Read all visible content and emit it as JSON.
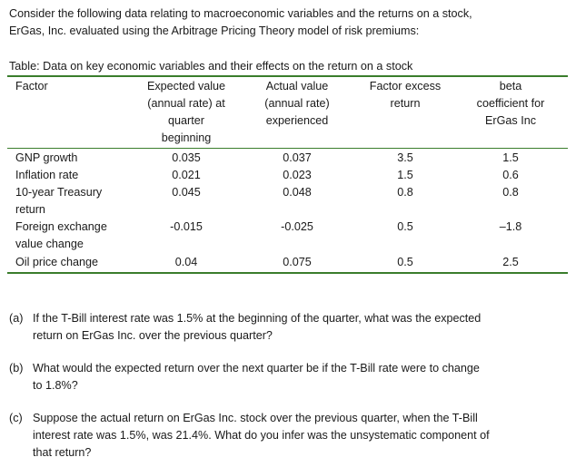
{
  "intro": [
    "Consider the following data relating to macroeconomic variables and the returns on a stock,",
    "ErGas, Inc. evaluated using the Arbitrage Pricing Theory model of risk premiums:"
  ],
  "table": {
    "caption": "Table: Data on key economic variables and their effects on the return on a stock",
    "headers": [
      [
        "Factor"
      ],
      [
        "Expected value",
        "(annual rate) at",
        "quarter",
        "beginning"
      ],
      [
        "Actual value",
        "(annual rate)",
        "experienced"
      ],
      [
        "Factor excess",
        "return"
      ],
      [
        "beta",
        "coefficient for",
        "ErGas Inc"
      ]
    ],
    "rows": [
      {
        "factor": [
          "GNP growth"
        ],
        "expected": "0.035",
        "actual": "0.037",
        "excess": "3.5",
        "beta": "1.5"
      },
      {
        "factor": [
          "Inflation rate"
        ],
        "expected": "0.021",
        "actual": "0.023",
        "excess": "1.5",
        "beta": "0.6"
      },
      {
        "factor": [
          "10-year Treasury",
          "return"
        ],
        "expected": "0.045",
        "actual": "0.048",
        "excess": "0.8",
        "beta": "0.8"
      },
      {
        "factor": [
          "Foreign exchange",
          "value change"
        ],
        "expected": "-0.015",
        "actual": "-0.025",
        "excess": "0.5",
        "beta": "–1.8"
      },
      {
        "factor": [
          "Oil price change"
        ],
        "expected": "0.04",
        "actual": "0.075",
        "excess": "0.5",
        "beta": "2.5"
      }
    ],
    "rule_color": "#3a7d2c"
  },
  "questions": [
    {
      "label": "(a)",
      "lines": [
        "If the T-Bill interest rate was 1.5% at the beginning of the quarter, what was the expected",
        "return on ErGas Inc. over the previous quarter?"
      ]
    },
    {
      "label": "(b)",
      "lines": [
        "What would the expected return over the next quarter be if the T-Bill rate were to change",
        "to 1.8%?"
      ]
    },
    {
      "label": "(c)",
      "lines": [
        "Suppose the actual return on ErGas Inc. stock over the previous quarter, when the T-Bill",
        "interest rate was 1.5%, was 21.4%. What do you infer was the unsystematic component of",
        "that return?"
      ]
    }
  ]
}
